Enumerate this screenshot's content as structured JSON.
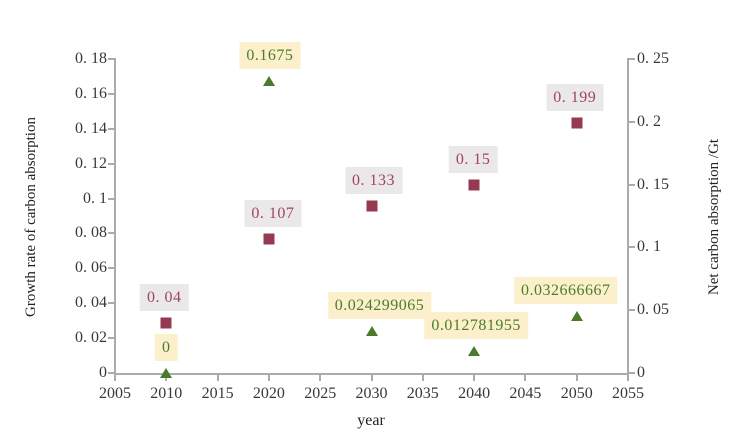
{
  "chart_data": {
    "type": "scatter",
    "title": "",
    "grid": "off",
    "legend": "none",
    "x_axis": {
      "label": "year",
      "min": 2005,
      "max": 2055,
      "tick_labels": [
        "2005",
        "2010",
        "2015",
        "2020",
        "2025",
        "2030",
        "2035",
        "2040",
        "2045",
        "2050",
        "2055"
      ]
    },
    "y_axis_left": {
      "label": "Growth rate of carbon absorption",
      "min": 0,
      "max": 0.18,
      "tick_labels": [
        "0",
        "0. 02",
        "0. 04",
        "0. 06",
        "0. 08",
        "0. 1",
        "0. 12",
        "0. 14",
        "0. 16",
        "0. 18"
      ]
    },
    "y_axis_right": {
      "label": "Net carbon absorption /Gt",
      "min": 0,
      "max": 0.25,
      "tick_labels": [
        "0",
        "0. 05",
        "0. 1",
        "0. 15",
        "0. 2",
        "0. 25"
      ]
    },
    "series": [
      {
        "name": "growth-rate-of-carbon-absorption",
        "marker": "triangle",
        "axis": "left",
        "marker_color": "#4c7a2c",
        "label_bg": "#fbf0cb",
        "label_color": "#4c7c2b",
        "points": [
          {
            "x": 2010,
            "y": 0,
            "label": "0",
            "dx": 0
          },
          {
            "x": 2020,
            "y": 0.1675,
            "label": "0.1675",
            "dx": 1
          },
          {
            "x": 2030,
            "y": 0.024299065,
            "label": "0.024299065",
            "dx": 8
          },
          {
            "x": 2040,
            "y": 0.012781955,
            "label": "0.012781955",
            "dx": 2
          },
          {
            "x": 2050,
            "y": 0.032666667,
            "label": "0.032666667",
            "dx": -11
          }
        ]
      },
      {
        "name": "net-carbon-absorption",
        "marker": "square",
        "axis": "right",
        "marker_color": "#963a52",
        "label_bg": "#eae8e8",
        "label_color": "#a04464",
        "points": [
          {
            "x": 2010,
            "y": 0.04,
            "label": "0. 04",
            "dx": -2
          },
          {
            "x": 2020,
            "y": 0.107,
            "label": "0. 107",
            "dx": 4
          },
          {
            "x": 2030,
            "y": 0.133,
            "label": "0. 133",
            "dx": 2
          },
          {
            "x": 2040,
            "y": 0.15,
            "label": "0. 15",
            "dx": -1
          },
          {
            "x": 2050,
            "y": 0.199,
            "label": "0. 199",
            "dx": -2
          }
        ]
      }
    ]
  }
}
